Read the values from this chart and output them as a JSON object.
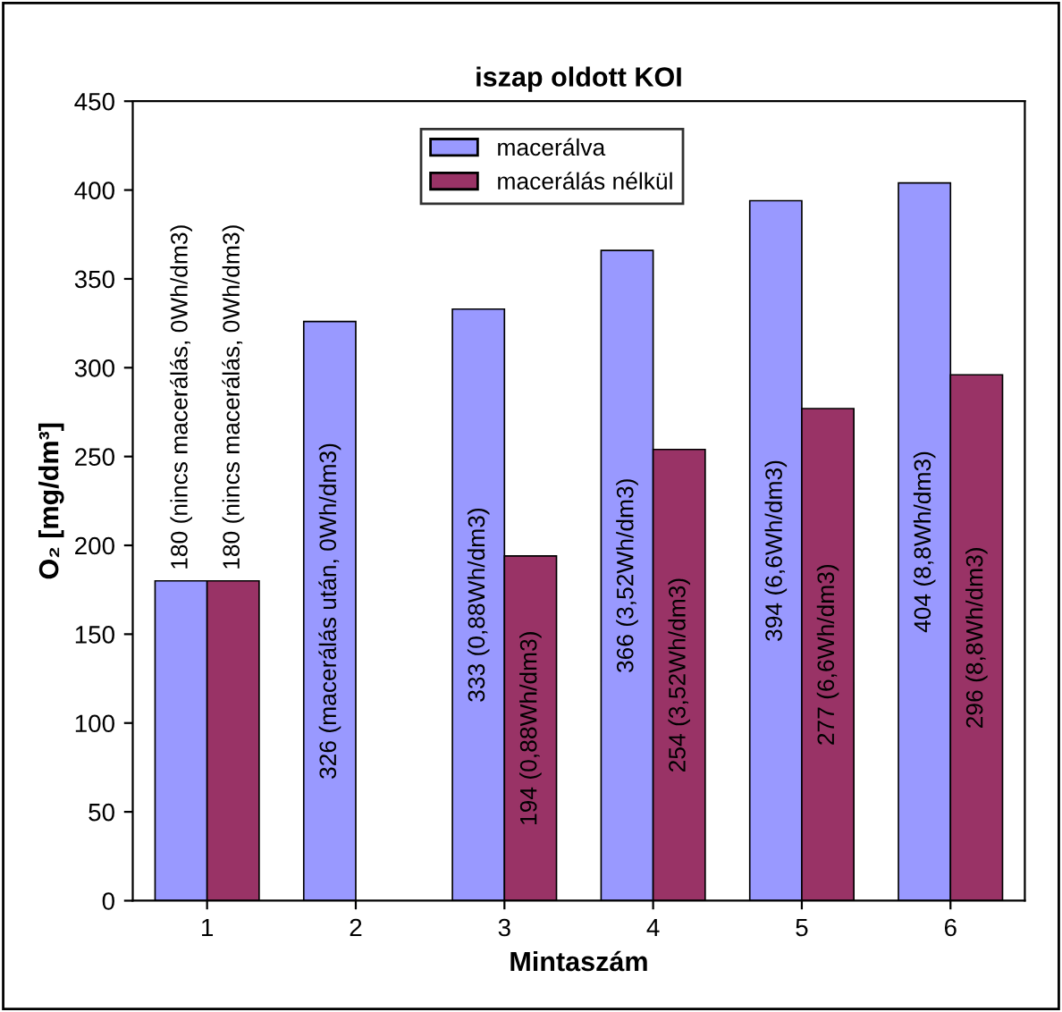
{
  "chart_data": {
    "type": "bar",
    "title": "iszap oldott KOI",
    "xlabel": "Mintaszám",
    "ylabel": "O₂ [mg/dm³]",
    "categories": [
      "1",
      "2",
      "3",
      "4",
      "5",
      "6"
    ],
    "series": [
      {
        "name": "macerálva",
        "color": "#9999ff",
        "values": [
          180,
          326,
          333,
          366,
          394,
          404
        ],
        "value_labels": [
          "180 (nincs macerálás, 0Wh/dm3)",
          "326 (macerálás után, 0Wh/dm3)",
          "333 (0,88Wh/dm3)",
          "366 (3,52Wh/dm3)",
          "394 (6,6Wh/dm3)",
          "404 (8,8Wh/dm3)"
        ]
      },
      {
        "name": "macerálás nélkül",
        "color": "#993366",
        "values": [
          180,
          null,
          194,
          254,
          277,
          296
        ],
        "value_labels": [
          "180 (nincs macerálás, 0Wh/dm3)",
          null,
          "194 (0,88Wh/dm3)",
          "254 (3,52Wh/dm3)",
          "277 (6,6Wh/dm3)",
          "296 (8,8Wh/dm3)"
        ]
      }
    ],
    "ylim": [
      0,
      450
    ],
    "yticks": [
      0,
      50,
      100,
      150,
      200,
      250,
      300,
      350,
      400,
      450
    ],
    "grid": false,
    "legend": "top"
  }
}
